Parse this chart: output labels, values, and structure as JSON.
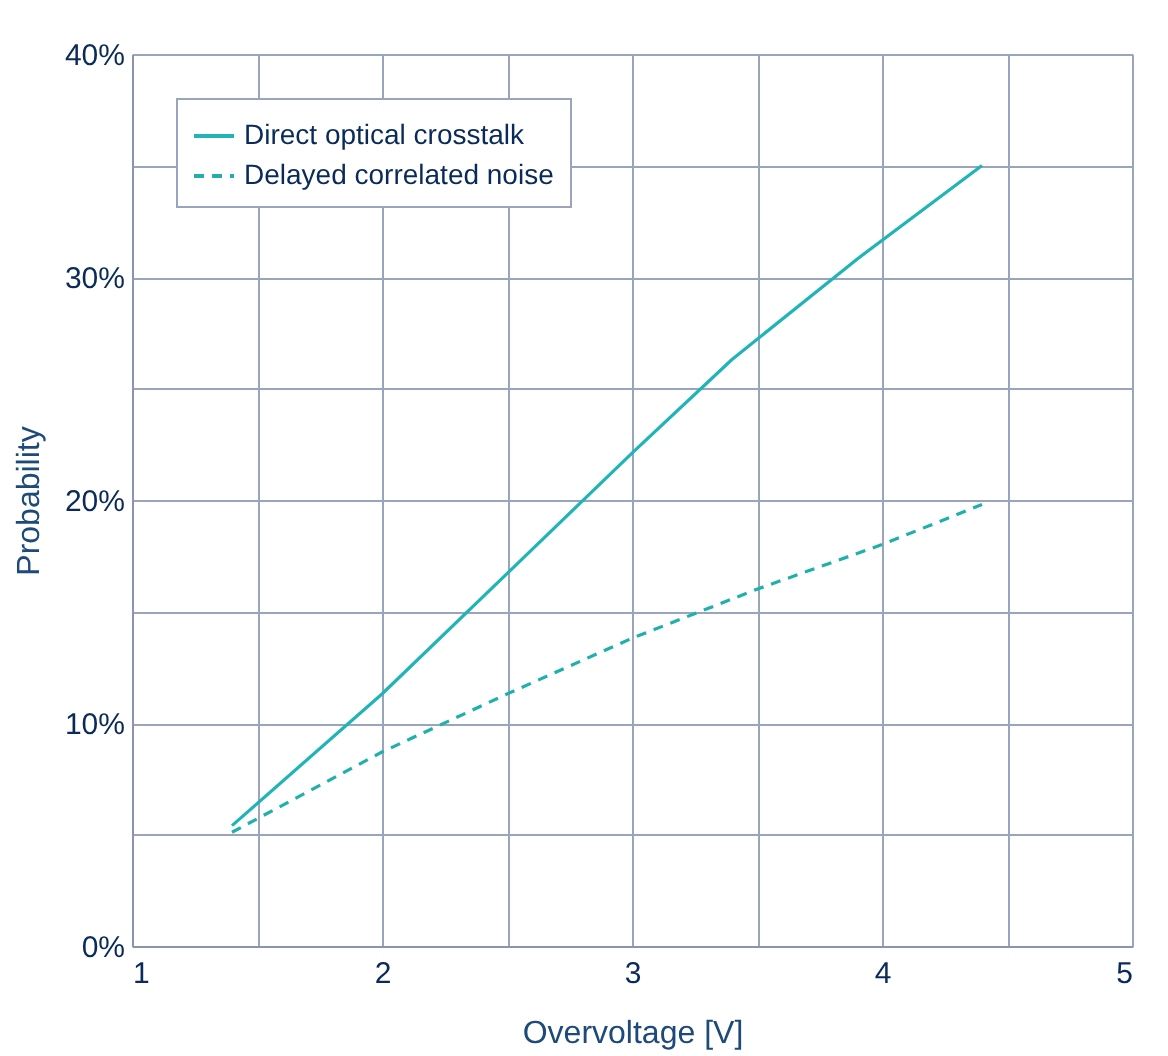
{
  "chart_data": {
    "type": "line",
    "xlabel": "Overvoltage [V]",
    "ylabel": "Probability",
    "series": [
      {
        "name": "Direct optical crosstalk",
        "color": "#20b4b8",
        "line_style": "solid",
        "x": [
          1.4,
          2,
          2.5,
          3,
          3.4,
          3.9,
          4.4
        ],
        "values": [
          5.4,
          11.3,
          16.7,
          22.1,
          26.3,
          30.8,
          35
        ]
      },
      {
        "name": "Delayed correlated noise",
        "color": "#20b0ac",
        "line_style": "dashed",
        "x": [
          1.4,
          2,
          2.5,
          3,
          3.5,
          4,
          4.4
        ],
        "values": [
          5.1,
          8.7,
          11.3,
          13.8,
          16,
          18,
          19.8
        ]
      }
    ],
    "xlim": [
      1,
      5
    ],
    "ylim": [
      0,
      40
    ],
    "xticks": [
      1,
      {
        "value": 1.5,
        "label": null
      },
      2,
      {
        "value": 2.5,
        "label": null
      },
      3,
      {
        "value": 3.5,
        "label": null
      },
      4,
      {
        "value": 4.5,
        "label": null
      },
      5
    ],
    "yticks": [
      {
        "value": 0,
        "label": "0%"
      },
      {
        "value": 5,
        "label": null
      },
      {
        "value": 10,
        "label": "10%"
      },
      {
        "value": 15,
        "label": null
      },
      {
        "value": 20,
        "label": "20%"
      },
      {
        "value": 25,
        "label": null
      },
      {
        "value": 30,
        "label": "30%"
      },
      {
        "value": 35,
        "label": null
      },
      {
        "value": 40,
        "label": "40%"
      }
    ],
    "grid": true,
    "legend": "top left"
  }
}
